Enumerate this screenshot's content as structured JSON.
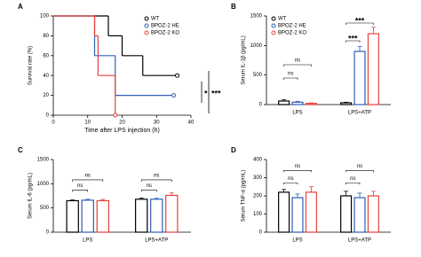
{
  "chart_data": [
    {
      "type": "step",
      "panel": "A",
      "y_label": "Survival rate (%)",
      "x_label": "Time after LPS injection (h)",
      "xlim": [
        0,
        40
      ],
      "xticks": [
        0,
        10,
        20,
        30,
        40
      ],
      "ylim": [
        0,
        100
      ],
      "yticks": [
        0,
        20,
        40,
        60,
        80,
        100
      ],
      "legend": "upper right",
      "annotations": [
        "*",
        "***"
      ],
      "series": [
        {
          "name": "WT",
          "color": "#000000",
          "x": [
            0,
            16,
            20,
            26,
            36
          ],
          "values": [
            100,
            80,
            60,
            40,
            40
          ]
        },
        {
          "name": "BPOZ-2 HE",
          "color": "#2f5fb3",
          "x": [
            0,
            12,
            18,
            35
          ],
          "values": [
            100,
            60,
            20,
            20
          ]
        },
        {
          "name": "BPOZ-2 KO",
          "color": "#e8413c",
          "x": [
            0,
            12,
            13,
            18
          ],
          "values": [
            100,
            80,
            40,
            0
          ]
        }
      ]
    },
    {
      "type": "bar",
      "panel": "B",
      "y_label": "Serum IL-1β (pg/mL)",
      "categories": [
        "LPS",
        "LPS+ATP"
      ],
      "ylim": [
        0,
        1500
      ],
      "yticks": [
        0,
        500,
        1000,
        1500
      ],
      "legend": "upper left",
      "annotations": [
        "ns",
        "ns",
        "***",
        "***"
      ],
      "series": [
        {
          "name": "WT",
          "color": "#000000",
          "values": [
            60,
            30
          ],
          "errors": [
            20,
            10
          ]
        },
        {
          "name": "BPOZ-2 HE",
          "color": "#2f5fb3",
          "values": [
            40,
            900
          ],
          "errors": [
            15,
            80
          ]
        },
        {
          "name": "BPOZ-2 KO",
          "color": "#e8413c",
          "values": [
            20,
            1200
          ],
          "errors": [
            8,
            110
          ]
        }
      ]
    },
    {
      "type": "bar",
      "panel": "C",
      "y_label": "Serum IL-6 (pg/mL)",
      "categories": [
        "LPS",
        "LPS+ATP"
      ],
      "ylim": [
        0,
        1500
      ],
      "yticks": [
        0,
        500,
        1000,
        1500
      ],
      "annotations": [
        "ns",
        "ns",
        "ns",
        "ns"
      ],
      "series": [
        {
          "color": "#000000",
          "values": [
            650,
            680
          ],
          "errors": [
            15,
            25
          ]
        },
        {
          "color": "#2f5fb3",
          "values": [
            660,
            680
          ],
          "errors": [
            20,
            20
          ]
        },
        {
          "color": "#e8413c",
          "values": [
            650,
            760
          ],
          "errors": [
            25,
            50
          ]
        }
      ]
    },
    {
      "type": "bar",
      "panel": "D",
      "y_label": "Serum TNF-α (pg/mL)",
      "categories": [
        "LPS",
        "LPS+ATP"
      ],
      "ylim": [
        0,
        400
      ],
      "yticks": [
        0,
        100,
        200,
        300,
        400
      ],
      "annotations": [
        "ns",
        "ns",
        "ns",
        "ns"
      ],
      "series": [
        {
          "color": "#000000",
          "values": [
            220,
            200
          ],
          "errors": [
            15,
            25
          ]
        },
        {
          "color": "#2f5fb3",
          "values": [
            190,
            190
          ],
          "errors": [
            20,
            25
          ]
        },
        {
          "color": "#e8413c",
          "values": [
            220,
            200
          ],
          "errors": [
            30,
            25
          ]
        }
      ]
    }
  ]
}
